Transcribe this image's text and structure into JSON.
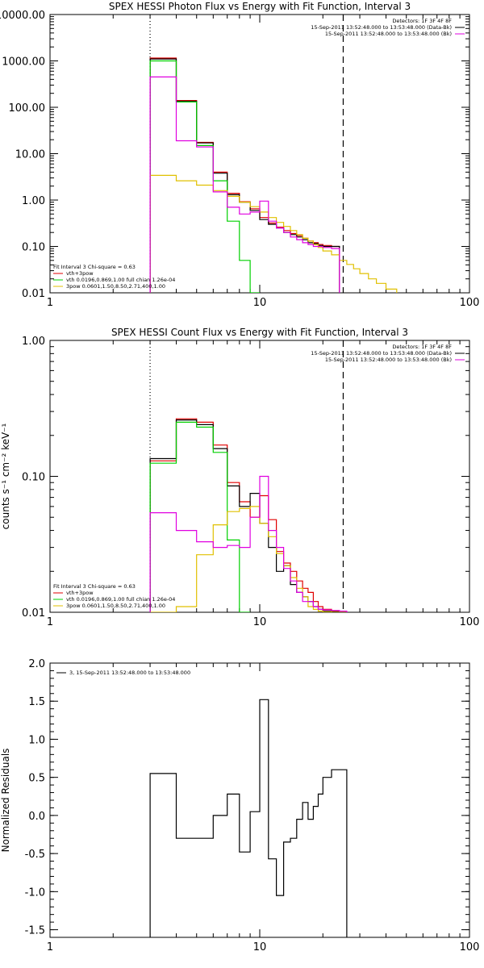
{
  "chart_data": [
    {
      "type": "line",
      "title": "SPEX HESSI Photon Flux vs Energy with Fit Function, Interval 3",
      "xlabel": "",
      "ylabel": "",
      "xscale": "log",
      "yscale": "log",
      "xlim": [
        1,
        100
      ],
      "ylim": [
        0.01,
        10000
      ],
      "x_tick_labels": [
        {
          "v": 1,
          "label": "1"
        },
        {
          "v": 10,
          "label": "10"
        },
        {
          "v": 100,
          "label": "100"
        }
      ],
      "y_tick_labels": [
        {
          "v": 0.01,
          "label": "0.01"
        },
        {
          "v": 0.1,
          "label": "0.10"
        },
        {
          "v": 1,
          "label": "1.00"
        },
        {
          "v": 10,
          "label": "10.00"
        },
        {
          "v": 100,
          "label": "100.00"
        },
        {
          "v": 1000,
          "label": "1000.00"
        },
        {
          "v": 10000,
          "label": "10000.00"
        }
      ],
      "edges": [
        3,
        4,
        5,
        6,
        7,
        8,
        9,
        10,
        11,
        12,
        13,
        14,
        15,
        16,
        17,
        18,
        19,
        20,
        22,
        24,
        26,
        28,
        30,
        33,
        36,
        40,
        45
      ],
      "series": [
        {
          "name": "vth+3pow",
          "color": "#e00000",
          "values": [
            1150,
            140,
            17.5,
            4.0,
            1.4,
            0.92,
            0.65,
            0.42,
            0.32,
            0.26,
            0.22,
            0.19,
            0.17,
            0.15,
            0.13,
            0.12,
            0.11,
            0.105,
            0.1
          ]
        },
        {
          "name": "",
          "color": "#000000",
          "values": [
            1100,
            135,
            17,
            3.8,
            1.3,
            0.9,
            0.6,
            0.38,
            0.3,
            0.25,
            0.2,
            0.18,
            0.16,
            0.14,
            0.12,
            0.115,
            0.105,
            0.1,
            0.1
          ]
        },
        {
          "name": "vth 0.0196,0.869,1.00 full chian 1.26e-04",
          "color": "#00d000",
          "values": [
            1000,
            130,
            15,
            2.6,
            0.35,
            0.05,
            0.0085
          ]
        },
        {
          "name": "3pow 0.0601,1.50,8.50,2.71,400,1.00",
          "color": "#e0c000",
          "values": [
            3.4,
            2.6,
            2.1,
            1.6,
            1.2,
            0.9,
            0.72,
            0.55,
            0.42,
            0.33,
            0.27,
            0.22,
            0.18,
            0.15,
            0.13,
            0.11,
            0.095,
            0.08,
            0.066,
            0.05,
            0.041,
            0.033,
            0.026,
            0.02,
            0.016,
            0.012
          ]
        },
        {
          "name": "",
          "color": "#e000e0",
          "values": [
            450,
            19,
            14,
            1.5,
            0.7,
            0.5,
            0.55,
            0.95,
            0.35,
            0.25,
            0.2,
            0.16,
            0.14,
            0.12,
            0.11,
            0.1,
            0.1,
            0.095,
            0.09
          ]
        }
      ],
      "vlines": [
        {
          "x": 3,
          "style": "dotted"
        },
        {
          "x": 25,
          "style": "dashed"
        }
      ],
      "info_lines": [
        "Detectors: 1F 3F 4F 8F",
        "15-Sep-2011 13:52:48.000 to 13:53:48.000 (Data-Bk)",
        "15-Sep-2011 13:52:48.000 to 13:53:48.000 (Bk)"
      ],
      "legend_title": "Fit Interval 3   Chi-square = 0.63"
    },
    {
      "type": "line",
      "title": "SPEX HESSI Count Flux vs Energy with Fit Function, Interval 3",
      "xlabel": "",
      "ylabel": "counts s⁻¹ cm⁻² keV⁻¹",
      "xscale": "log",
      "yscale": "log",
      "xlim": [
        1,
        100
      ],
      "ylim": [
        0.01,
        1.0
      ],
      "x_tick_labels": [
        {
          "v": 1,
          "label": "1"
        },
        {
          "v": 10,
          "label": "10"
        },
        {
          "v": 100,
          "label": "100"
        }
      ],
      "y_tick_labels": [
        {
          "v": 0.01,
          "label": "0.01"
        },
        {
          "v": 0.1,
          "label": "0.10"
        },
        {
          "v": 1,
          "label": "1.00"
        }
      ],
      "edges": [
        3,
        4,
        5,
        6,
        7,
        8,
        9,
        10,
        11,
        12,
        13,
        14,
        15,
        16,
        17,
        18,
        19,
        20,
        22,
        24,
        26
      ],
      "series": [
        {
          "name": "vth+3pow",
          "color": "#e00000",
          "values": [
            0.13,
            0.265,
            0.25,
            0.17,
            0.09,
            0.065,
            0.05,
            0.072,
            0.048,
            0.028,
            0.023,
            0.02,
            0.017,
            0.015,
            0.014,
            0.012,
            0.011,
            0.0105,
            0.0102,
            0.0101
          ]
        },
        {
          "name": "",
          "color": "#000000",
          "values": [
            0.135,
            0.26,
            0.24,
            0.16,
            0.085,
            0.06,
            0.075,
            0.045,
            0.03,
            0.02,
            0.022,
            0.016,
            0.014,
            0.013,
            0.012,
            0.011,
            0.0105,
            0.0102,
            0.0101,
            0.0101
          ]
        },
        {
          "name": "vth 0.0196,0.869,1.00 full chian 1.26e-04",
          "color": "#00d000",
          "values": [
            0.125,
            0.25,
            0.23,
            0.15,
            0.034,
            0.0095
          ]
        },
        {
          "name": "3pow 0.0601,1.50,8.50,2.71,400,1.00",
          "color": "#e0c000",
          "values": [
            0.0095,
            0.011,
            0.0265,
            0.044,
            0.055,
            0.058,
            0.06,
            0.045,
            0.036,
            0.027,
            0.022,
            0.018,
            0.015,
            0.013,
            0.011,
            0.0105,
            0.0102,
            0.0101,
            0.01,
            0.01
          ]
        },
        {
          "name": "",
          "color": "#e000e0",
          "values": [
            0.054,
            0.04,
            0.033,
            0.03,
            0.031,
            0.03,
            0.05,
            0.1,
            0.04,
            0.03,
            0.021,
            0.017,
            0.014,
            0.012,
            0.012,
            0.011,
            0.0105,
            0.0104,
            0.0103,
            0.0102
          ]
        }
      ],
      "vlines": [
        {
          "x": 3,
          "style": "dotted"
        },
        {
          "x": 25,
          "style": "dashed"
        }
      ],
      "info_lines": [
        "Detectors: 1F 3F 4F 8F",
        "15-Sep-2011 13:52:48.000 to 13:53:48.000 (Data-Bk)",
        "15-Sep-2011 13:52:48.000 to 13:53:48.000 (Bk)"
      ],
      "legend_title": "Fit Interval 3   Chi-square = 0.63"
    },
    {
      "type": "line",
      "title": "",
      "xlabel": "",
      "ylabel": "Normalized Residuals",
      "xscale": "log",
      "yscale": "linear",
      "xlim": [
        1,
        100
      ],
      "ylim": [
        -1.6,
        2.0
      ],
      "x_tick_labels": [
        {
          "v": 1,
          "label": "1"
        },
        {
          "v": 10,
          "label": "10"
        },
        {
          "v": 100,
          "label": "100"
        }
      ],
      "y_tick_labels": [
        {
          "v": -1.5,
          "label": "-1.5"
        },
        {
          "v": -1.0,
          "label": "-1.0"
        },
        {
          "v": -0.5,
          "label": "-0.5"
        },
        {
          "v": 0.0,
          "label": "0.0"
        },
        {
          "v": 0.5,
          "label": "0.5"
        },
        {
          "v": 1.0,
          "label": "1.0"
        },
        {
          "v": 1.5,
          "label": "1.5"
        },
        {
          "v": 2.0,
          "label": "2.0"
        }
      ],
      "edges": [
        3,
        4,
        5,
        6,
        7,
        8,
        9,
        10,
        11,
        12,
        13,
        14,
        15,
        16,
        17,
        18,
        19,
        20,
        22,
        24,
        26
      ],
      "series": [
        {
          "name": "3, 15-Sep-2011 13:52:48.000 to 13:53:48.000",
          "color": "#000000",
          "values": [
            0.55,
            -0.3,
            -0.3,
            0.0,
            0.28,
            -0.48,
            0.05,
            1.52,
            -0.57,
            -1.05,
            -0.35,
            -0.3,
            -0.05,
            0.17,
            -0.05,
            0.12,
            0.28,
            0.5,
            0.6,
            0.6
          ]
        }
      ],
      "vlines": [],
      "info_lines": [],
      "legend_title": ""
    }
  ]
}
